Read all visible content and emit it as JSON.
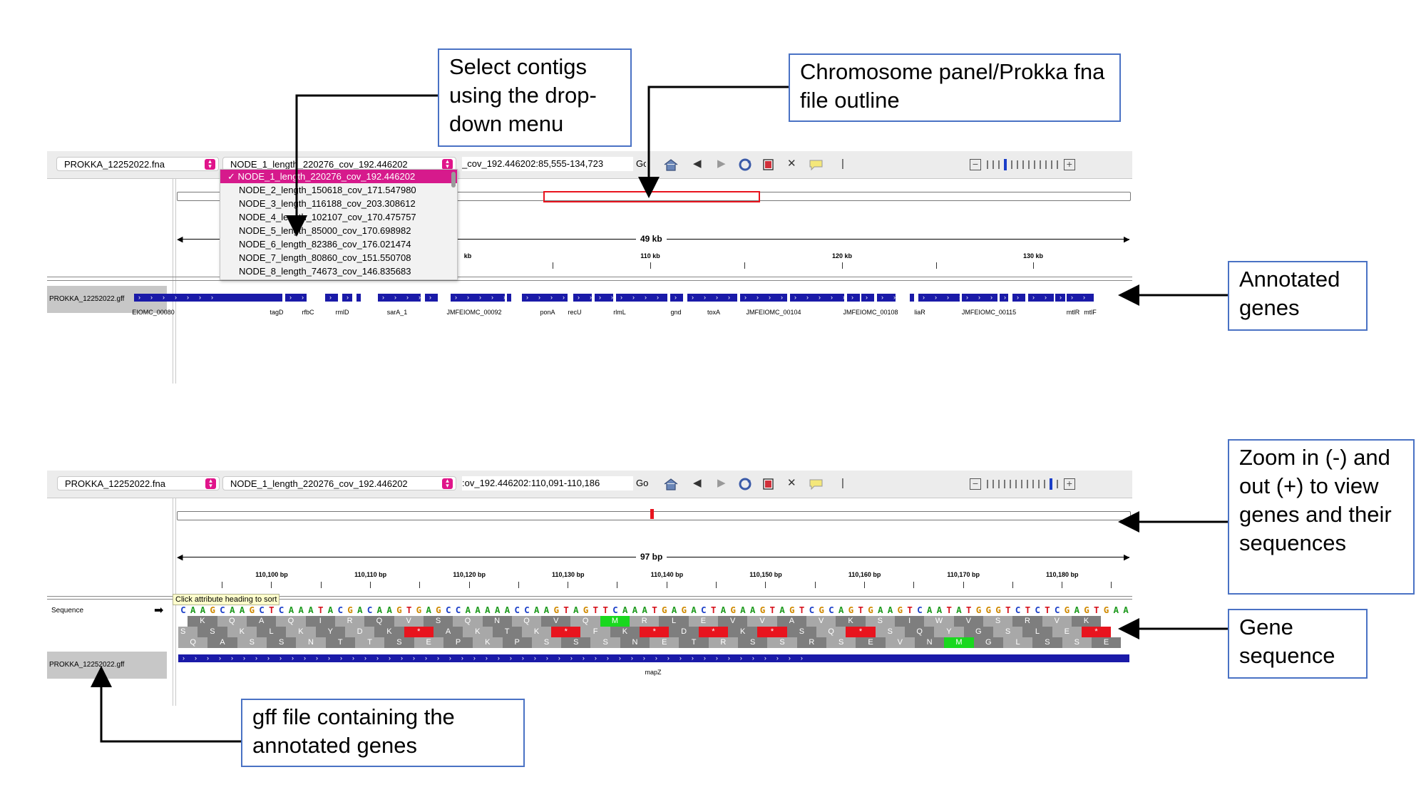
{
  "top_panel": {
    "genome_select": "PROKKA_12252022.fna",
    "contig_select": "NODE_1_length_220276_cov_192.446202",
    "locus": "_cov_192.446202:85,555-134,723",
    "go_label": "Go",
    "dropdown_items": [
      "NODE_1_length_220276_cov_192.446202",
      "NODE_2_length_150618_cov_171.547980",
      "NODE_3_length_116188_cov_203.308612",
      "NODE_4_length_102107_cov_170.475757",
      "NODE_5_length_85000_cov_170.698982",
      "NODE_6_length_82386_cov_176.021474",
      "NODE_7_length_80860_cov_151.550708",
      "NODE_8_length_74673_cov_146.835683"
    ],
    "dropdown_check": "✓",
    "span_label": "49 kb",
    "ruler_labels": [
      "kb",
      "110 kb",
      "120 kb",
      "130 kb"
    ],
    "track_name": "PROKKA_12252022.gff",
    "gene_labels": [
      "EIOMC_00080",
      "tagD",
      "rfbC",
      "rmlD",
      "sarA_1",
      "JMFEIOMC_00092",
      "ponA",
      "recU",
      "rlmL",
      "gnd",
      "toxA",
      "JMFEIOMC_00104",
      "JMFEIOMC_00108",
      "liaR",
      "JMFEIOMC_00115",
      "mtlR",
      "mtlF"
    ]
  },
  "bottom_panel": {
    "genome_select": "PROKKA_12252022.fna",
    "contig_select": "NODE_1_length_220276_cov_192.446202",
    "locus": ":ov_192.446202:110,091-110,186",
    "go_label": "Go",
    "span_label": "97 bp",
    "ruler_labels": [
      "110,100 bp",
      "110,110 bp",
      "110,120 bp",
      "110,130 bp",
      "110,140 bp",
      "110,150 bp",
      "110,160 bp",
      "110,170 bp",
      "110,180 bp"
    ],
    "sequence_track_name": "Sequence",
    "sequence_arrow": "➡",
    "tooltip": "Click attribute heading to sort",
    "dna": "CAAGCAAGCTCAAATACGACAAGTGAGCCAAAAACCAAGTAGTTCAAATGAGACTAGAAGTAGTCGCAGTGAAGTCAATATGGGTCTCTCGAGTGAA",
    "frame1": [
      "",
      "K",
      "Q",
      "A",
      "Q",
      "I",
      "R",
      "Q",
      "V",
      "S",
      "Q",
      "N",
      "Q",
      "V",
      "Q",
      "M",
      "R",
      "L",
      "E",
      "V",
      "V",
      "A",
      "V",
      "K",
      "S",
      "I",
      "W",
      "V",
      "S",
      "R",
      "V",
      "K"
    ],
    "frame2": [
      "S",
      "S",
      "K",
      "L",
      "K",
      "Y",
      "D",
      "K",
      "*",
      "A",
      "K",
      "T",
      "K",
      "*",
      "F",
      "K",
      "*",
      "D",
      "*",
      "K",
      "*",
      "S",
      "Q",
      "*",
      "S",
      "Q",
      "Y",
      "G",
      "S",
      "L",
      "E",
      "*"
    ],
    "frame3": [
      "Q",
      "A",
      "S",
      "S",
      "N",
      "T",
      "T",
      "S",
      "E",
      "P",
      "K",
      "P",
      "S",
      "S",
      "S",
      "N",
      "E",
      "T",
      "R",
      "S",
      "S",
      "R",
      "S",
      "E",
      "V",
      "N",
      "M",
      "G",
      "L",
      "S",
      "S",
      "E"
    ],
    "track_name": "PROKKA_12252022.gff",
    "gene_label": "mapZ"
  },
  "callouts": {
    "select_contigs": "Select contigs using the drop-down menu",
    "chromosome_panel": "Chromosome panel/Prokka fna file outline",
    "annotated_genes": "Annotated genes",
    "zoom": "Zoom in (-) and out (+) to view genes and their sequences",
    "gene_sequence": "Gene sequence",
    "gff_file": "gff file containing the annotated genes"
  },
  "colors": {
    "gene_blue": "#1a1aa8",
    "highlight_pink": "#d61a8c",
    "callout_border": "#4a72c4",
    "chromosome_box_red": "#e8141e",
    "stop_red": "#e8141e",
    "met_green": "#19d81e",
    "nuc_A": "#1e9a1e",
    "nuc_C": "#1a3ec8",
    "nuc_G": "#d08a00",
    "nuc_T": "#d6141e"
  },
  "icons": [
    "home-icon",
    "back-icon",
    "forward-icon",
    "refresh-icon",
    "roi-icon",
    "fit-icon",
    "popup-text-icon",
    "ruler-icon",
    "zoom-out-icon",
    "zoom-in-icon"
  ]
}
